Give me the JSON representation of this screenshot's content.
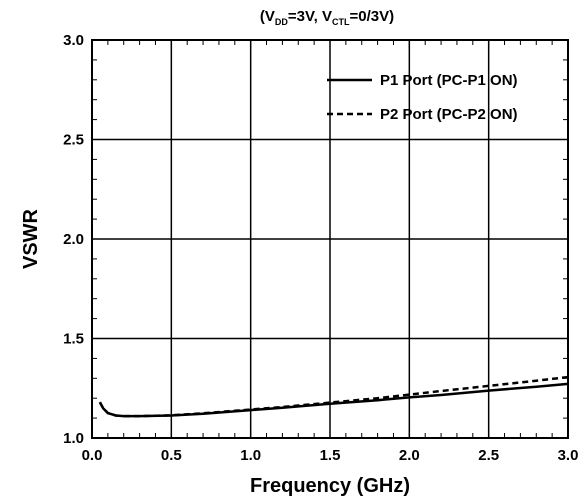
{
  "chart_data": {
    "type": "line",
    "title": {
      "parts": [
        {
          "text": "(V"
        },
        {
          "text": "DD",
          "sub": true
        },
        {
          "text": "=3V, V"
        },
        {
          "text": "CTL",
          "sub": true
        },
        {
          "text": "=0/3V)"
        }
      ]
    },
    "xlabel": "Frequency (GHz)",
    "ylabel": "VSWR",
    "xlim": [
      0.0,
      3.0
    ],
    "ylim": [
      1.0,
      3.0
    ],
    "xticks": [
      "0.0",
      "0.5",
      "1.0",
      "1.5",
      "2.0",
      "2.5",
      "3.0"
    ],
    "yticks": [
      "1.0",
      "1.5",
      "2.0",
      "2.5",
      "3.0"
    ],
    "grid": true,
    "legend_position": "top-right",
    "series": [
      {
        "name": "P1 Port (PC-P1 ON)",
        "style": "solid",
        "color": "#000000",
        "x": [
          0.05,
          0.07,
          0.1,
          0.15,
          0.2,
          0.3,
          0.5,
          0.7,
          1.0,
          1.2,
          1.5,
          1.8,
          2.0,
          2.2,
          2.5,
          2.8,
          3.0
        ],
        "y": [
          1.18,
          1.15,
          1.125,
          1.113,
          1.11,
          1.11,
          1.113,
          1.122,
          1.14,
          1.152,
          1.172,
          1.19,
          1.204,
          1.216,
          1.238,
          1.258,
          1.272
        ]
      },
      {
        "name": "P2 Port (PC-P2 ON)",
        "style": "dashed",
        "color": "#000000",
        "x": [
          0.05,
          0.07,
          0.1,
          0.15,
          0.2,
          0.3,
          0.5,
          0.7,
          1.0,
          1.2,
          1.5,
          1.8,
          2.0,
          2.2,
          2.5,
          2.8,
          3.0
        ],
        "y": [
          1.18,
          1.15,
          1.125,
          1.113,
          1.11,
          1.11,
          1.114,
          1.124,
          1.143,
          1.156,
          1.178,
          1.2,
          1.218,
          1.236,
          1.262,
          1.288,
          1.306
        ]
      }
    ]
  }
}
